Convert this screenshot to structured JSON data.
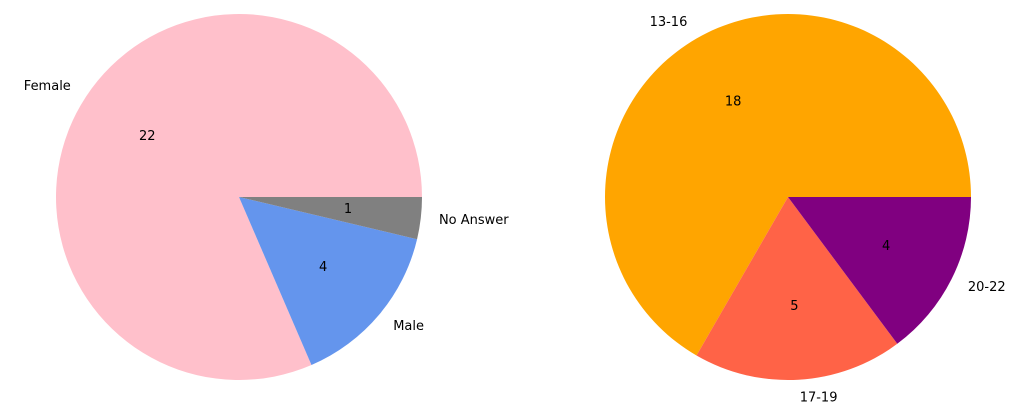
{
  "chart_data": [
    {
      "type": "pie",
      "categories": [
        "Female",
        "Male",
        "No Answer"
      ],
      "values": [
        22,
        4,
        1
      ],
      "colors": [
        "#ffc0cb",
        "#6495ed",
        "#808080"
      ]
    },
    {
      "type": "pie",
      "categories": [
        "13-16",
        "17-19",
        "20-22"
      ],
      "values": [
        18,
        5,
        4
      ],
      "colors": [
        "#ffa500",
        "#ff6347",
        "#800080"
      ]
    }
  ]
}
